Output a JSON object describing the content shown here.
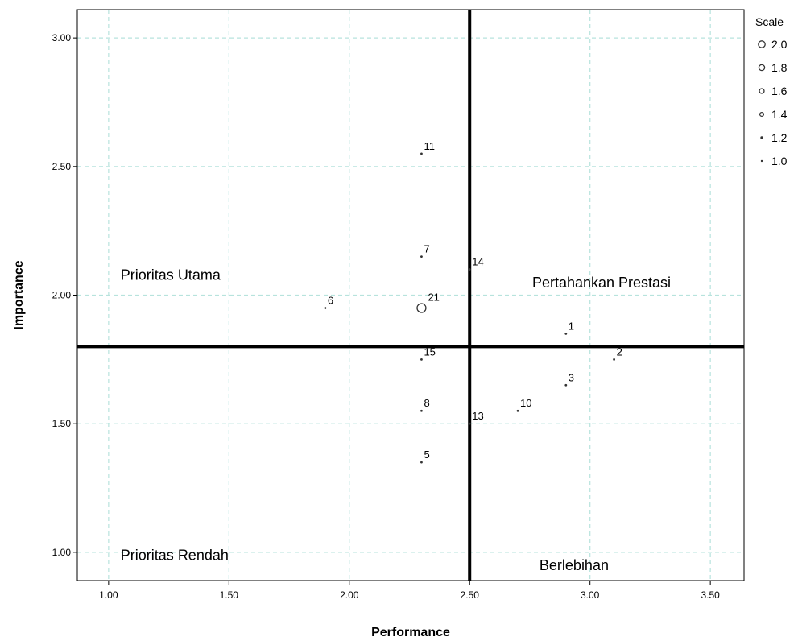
{
  "chart_data": {
    "type": "scatter",
    "title": "",
    "xlabel": "Performance",
    "ylabel": "Importance",
    "xlim": [
      0.87,
      3.64
    ],
    "ylim": [
      0.89,
      3.11
    ],
    "grid": true,
    "x_ticks": [
      1.0,
      1.5,
      2.0,
      2.5,
      3.0,
      3.5
    ],
    "y_ticks": [
      1.0,
      1.5,
      2.0,
      2.5,
      3.0
    ],
    "x_tick_labels": [
      "1.00",
      "1.50",
      "2.00",
      "2.50",
      "3.00",
      "3.50"
    ],
    "y_tick_labels": [
      "1.00",
      "1.50",
      "2.00",
      "2.50",
      "3.00"
    ],
    "reference_lines": {
      "x": 2.5,
      "y": 1.8
    },
    "points": [
      {
        "label": "11",
        "x": 2.3,
        "y": 2.55,
        "size": 1.0
      },
      {
        "label": "7",
        "x": 2.3,
        "y": 2.15,
        "size": 1.0
      },
      {
        "label": "14",
        "x": 2.5,
        "y": 2.1,
        "size": 1.0
      },
      {
        "label": "21",
        "x": 2.3,
        "y": 1.95,
        "size": 2.0
      },
      {
        "label": "6",
        "x": 1.9,
        "y": 1.95,
        "size": 1.0
      },
      {
        "label": "1",
        "x": 2.9,
        "y": 1.85,
        "size": 1.0
      },
      {
        "label": "15",
        "x": 2.3,
        "y": 1.75,
        "size": 1.0
      },
      {
        "label": "2",
        "x": 3.1,
        "y": 1.75,
        "size": 1.0
      },
      {
        "label": "3",
        "x": 2.9,
        "y": 1.65,
        "size": 1.0
      },
      {
        "label": "10",
        "x": 2.7,
        "y": 1.55,
        "size": 1.0
      },
      {
        "label": "8",
        "x": 2.3,
        "y": 1.55,
        "size": 1.0
      },
      {
        "label": "13",
        "x": 2.5,
        "y": 1.5,
        "size": 1.0
      },
      {
        "label": "5",
        "x": 2.3,
        "y": 1.35,
        "size": 1.0
      }
    ],
    "quadrant_labels": [
      {
        "text": "Prioritas Utama",
        "x": 1.05,
        "y": 2.06
      },
      {
        "text": "Pertahankan Prestasi",
        "x": 2.76,
        "y": 2.03
      },
      {
        "text": "Prioritas Rendah",
        "x": 1.05,
        "y": 0.97
      },
      {
        "text": "Berlebihan",
        "x": 2.79,
        "y": 0.93
      }
    ],
    "legend": {
      "title": "Scale",
      "position": "top-right",
      "entries": [
        {
          "label": "2.0",
          "size": 2.0
        },
        {
          "label": "1.8",
          "size": 1.8
        },
        {
          "label": "1.6",
          "size": 1.6
        },
        {
          "label": "1.4",
          "size": 1.4
        },
        {
          "label": "1.2",
          "size": 1.2
        },
        {
          "label": "1.0",
          "size": 1.0
        }
      ]
    },
    "colors": {
      "points": "#333333",
      "grid": "#b7e3dd",
      "reference_lines": "#000000",
      "frame": "#000000"
    }
  }
}
